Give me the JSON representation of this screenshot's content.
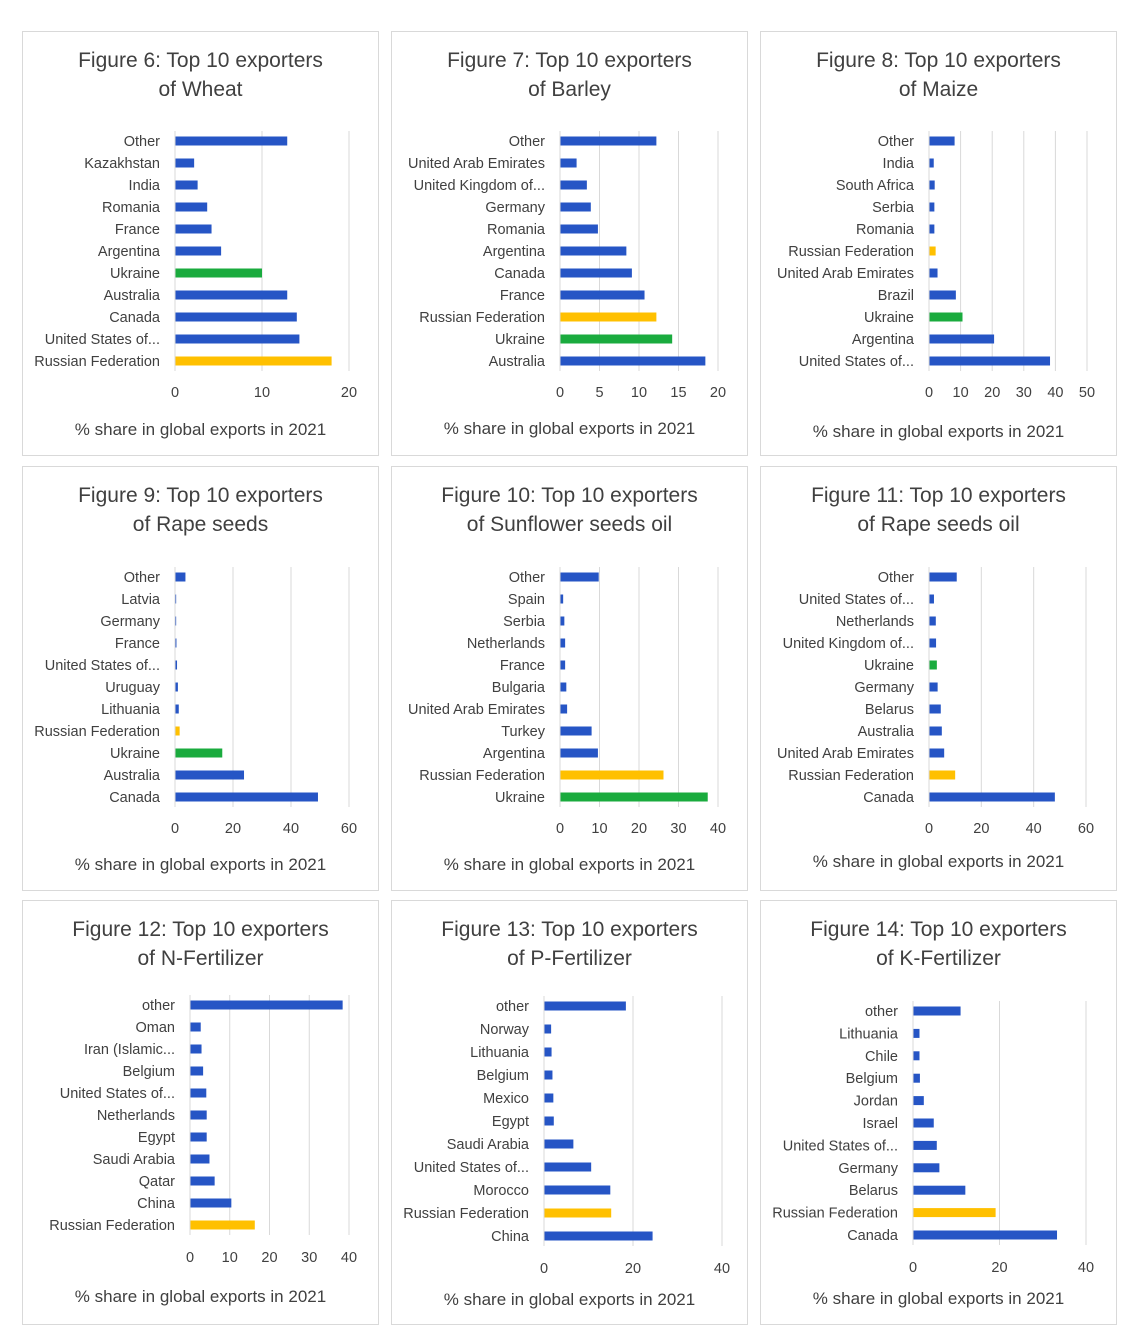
{
  "colors": {
    "bar": "#2655c5",
    "russia": "#ffc000",
    "ukraine": "#1aab3e",
    "grid": "#d9d9d9",
    "text": "#404040"
  },
  "chart_data": [
    {
      "type": "bar",
      "orientation": "horizontal",
      "title_line1": "Figure 6: Top 10 exporters",
      "title_line2": "of Wheat",
      "xlabel": "% share in global exports in 2021",
      "xlim": [
        0,
        20
      ],
      "ticks": [
        0,
        10,
        20
      ],
      "categories": [
        "Other",
        "Kazakhstan",
        "India",
        "Romania",
        "France",
        "Argentina",
        "Ukraine",
        "Australia",
        "Canada",
        "United States of...",
        "Russian Federation"
      ],
      "values": [
        12.9,
        2.2,
        2.6,
        3.7,
        4.2,
        5.3,
        10.0,
        12.9,
        14.0,
        14.3,
        18.0
      ]
    },
    {
      "type": "bar",
      "orientation": "horizontal",
      "title_line1": "Figure 7: Top 10 exporters",
      "title_line2": "of Barley",
      "xlabel": "% share in global exports in 2021",
      "xlim": [
        0,
        20
      ],
      "ticks": [
        0,
        5,
        10,
        15,
        20
      ],
      "categories": [
        "Other",
        "United Arab Emirates",
        "United Kingdom of...",
        "Germany",
        "Romania",
        "Argentina",
        "Canada",
        "France",
        "Russian Federation",
        "Ukraine",
        "Australia"
      ],
      "values": [
        12.2,
        2.1,
        3.4,
        3.9,
        4.8,
        8.4,
        9.1,
        10.7,
        12.2,
        14.2,
        18.4
      ]
    },
    {
      "type": "bar",
      "orientation": "horizontal",
      "title_line1": "Figure 8: Top 10 exporters",
      "title_line2": "of Maize",
      "xlabel": "% share in global exports in 2021",
      "xlim": [
        0,
        50
      ],
      "ticks": [
        0,
        10,
        20,
        30,
        40,
        50
      ],
      "categories": [
        "Other",
        "India",
        "South Africa",
        "Serbia",
        "Romania",
        "Russian Federation",
        "United Arab Emirates",
        "Brazil",
        "Ukraine",
        "Argentina",
        "United States of..."
      ],
      "values": [
        8.1,
        1.5,
        1.8,
        1.7,
        1.7,
        2.1,
        2.7,
        8.5,
        10.6,
        20.6,
        38.3
      ]
    },
    {
      "type": "bar",
      "orientation": "horizontal",
      "title_line1": "Figure 9: Top 10 exporters",
      "title_line2": "of Rape seeds",
      "xlabel": "% share in global exports in 2021",
      "xlim": [
        0,
        60
      ],
      "ticks": [
        0,
        20,
        40,
        60
      ],
      "categories": [
        "Other",
        "Latvia",
        "Germany",
        "France",
        "United States of...",
        "Uruguay",
        "Lithuania",
        "Russian Federation",
        "Ukraine",
        "Australia",
        "Canada"
      ],
      "values": [
        3.6,
        0.4,
        0.4,
        0.5,
        0.7,
        1.0,
        1.3,
        1.6,
        16.3,
        23.8,
        49.3
      ]
    },
    {
      "type": "bar",
      "orientation": "horizontal",
      "title_line1": "Figure 10: Top 10 exporters",
      "title_line2": "of Sunflower seeds oil",
      "xlabel": "% share in global exports in 2021",
      "xlim": [
        0,
        40
      ],
      "ticks": [
        0,
        10,
        20,
        30,
        40
      ],
      "categories": [
        "Other",
        "Spain",
        "Serbia",
        "Netherlands",
        "France",
        "Bulgaria",
        "United Arab Emirates",
        "Turkey",
        "Argentina",
        "Russian Federation",
        "Ukraine"
      ],
      "values": [
        9.8,
        0.8,
        1.1,
        1.3,
        1.3,
        1.6,
        1.8,
        8.0,
        9.6,
        26.2,
        37.4
      ]
    },
    {
      "type": "bar",
      "orientation": "horizontal",
      "title_line1": "Figure 11: Top 10 exporters",
      "title_line2": "of Rape seeds oil",
      "xlabel": "% share in global exports in 2021",
      "xlim": [
        0,
        60
      ],
      "ticks": [
        0,
        20,
        40,
        60
      ],
      "categories": [
        "Other",
        "United States of...",
        "Netherlands",
        "United Kingdom of...",
        "Ukraine",
        "Germany",
        "Belarus",
        "Australia",
        "United Arab Emirates",
        "Russian Federation",
        "Canada"
      ],
      "values": [
        10.6,
        1.9,
        2.6,
        2.7,
        3.0,
        3.3,
        4.5,
        4.9,
        5.8,
        10.0,
        48.1
      ]
    },
    {
      "type": "bar",
      "orientation": "horizontal",
      "title_line1": "Figure 12: Top 10 exporters",
      "title_line2": "of N-Fertilizer",
      "xlabel": "% share in global exports in 2021",
      "xlim": [
        0,
        40
      ],
      "ticks": [
        0,
        10,
        20,
        30,
        40
      ],
      "categories": [
        "other",
        "Oman",
        "Iran (Islamic...",
        "Belgium",
        "United States of...",
        "Netherlands",
        "Egypt",
        "Saudi Arabia",
        "Qatar",
        "China",
        "Russian Federation"
      ],
      "values": [
        38.4,
        2.7,
        2.9,
        3.3,
        4.1,
        4.2,
        4.2,
        4.9,
        6.2,
        10.4,
        16.3
      ]
    },
    {
      "type": "bar",
      "orientation": "horizontal",
      "title_line1": "Figure 13: Top 10 exporters",
      "title_line2": "of P-Fertilizer",
      "xlabel": "% share in global exports in 2021",
      "xlim": [
        0,
        40
      ],
      "ticks": [
        0,
        20,
        40
      ],
      "categories": [
        "other",
        "Norway",
        "Lithuania",
        "Belgium",
        "Mexico",
        "Egypt",
        "Saudi Arabia",
        "United States of...",
        "Morocco",
        "Russian Federation",
        "China"
      ],
      "values": [
        18.4,
        1.6,
        1.7,
        1.9,
        2.1,
        2.2,
        6.6,
        10.6,
        14.9,
        15.1,
        24.4
      ]
    },
    {
      "type": "bar",
      "orientation": "horizontal",
      "title_line1": "Figure 14: Top 10 exporters",
      "title_line2": "of K-Fertilizer",
      "xlabel": "% share in global exports in 2021",
      "xlim": [
        0,
        40
      ],
      "ticks": [
        0,
        20,
        40
      ],
      "categories": [
        "other",
        "Lithuania",
        "Chile",
        "Belgium",
        "Jordan",
        "Israel",
        "United States of...",
        "Germany",
        "Belarus",
        "Russian Federation",
        "Canada"
      ],
      "values": [
        11.0,
        1.5,
        1.5,
        1.6,
        2.5,
        4.8,
        5.5,
        6.1,
        12.1,
        19.1,
        33.3
      ]
    }
  ]
}
